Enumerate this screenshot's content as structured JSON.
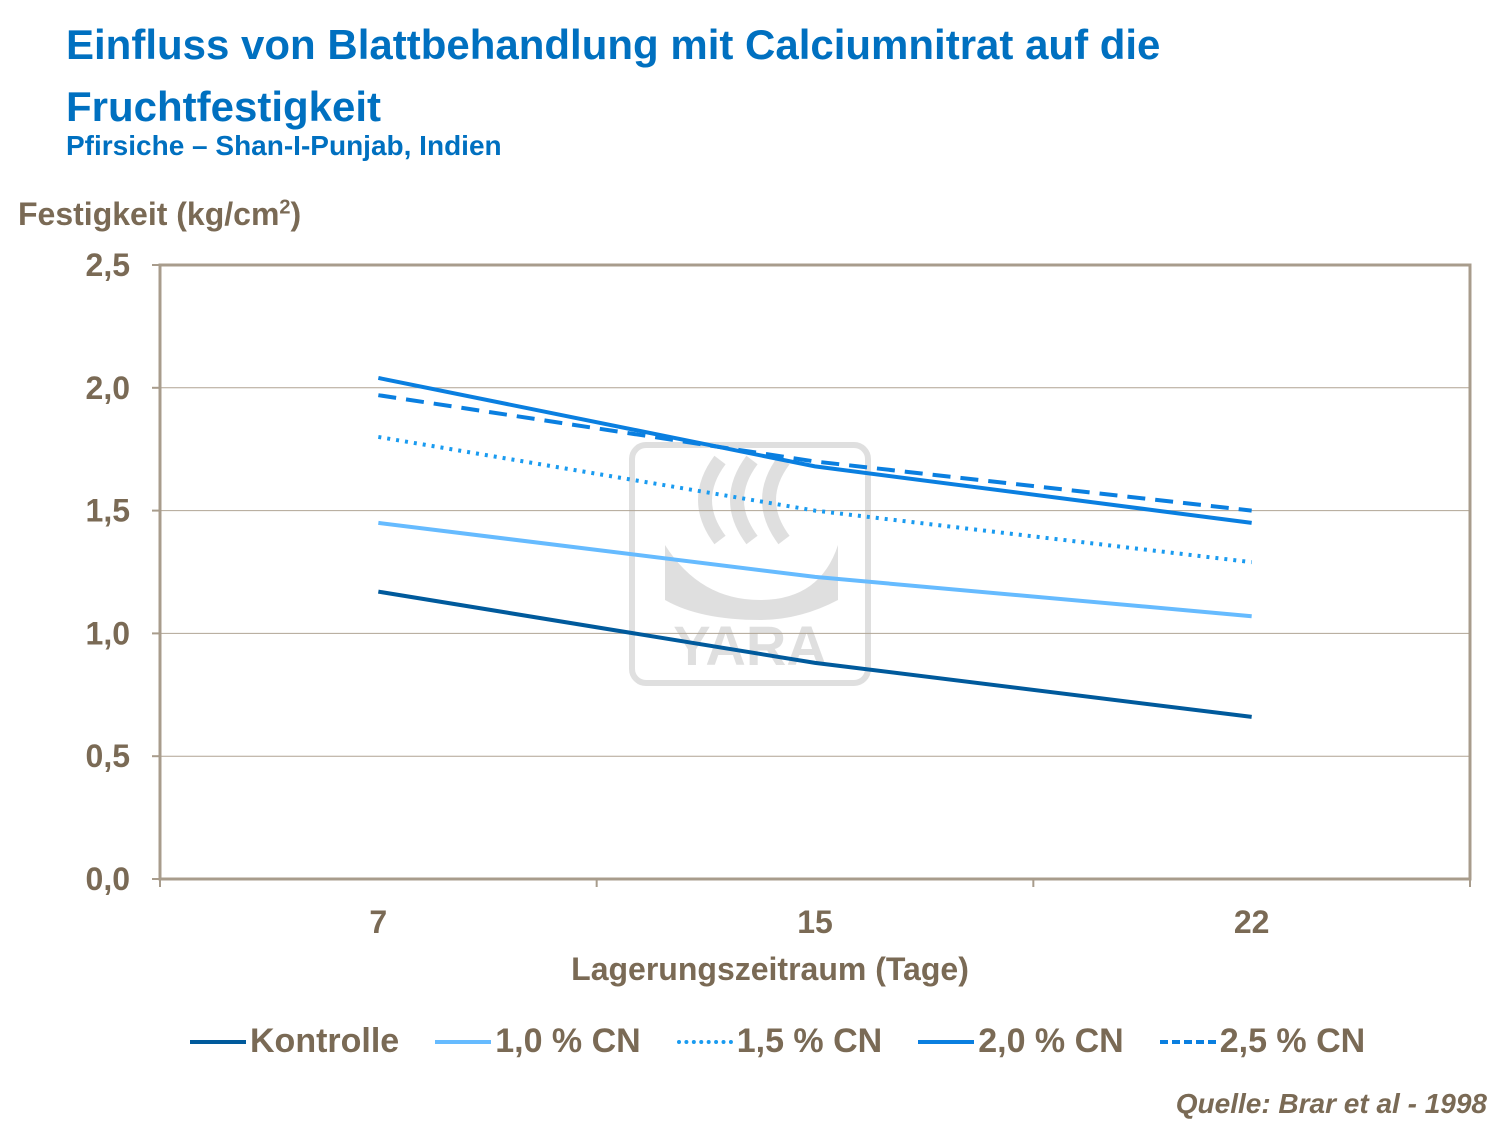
{
  "chart_data": {
    "type": "line",
    "title": "Einfluss von Blattbehandlung mit Calciumnitrat auf die Fruchtfestigkeit",
    "subtitle": "Pfirsiche – Shan-I-Punjab,  Indien",
    "ylabel": "Festigkeit (kg/cm",
    "ylabel_sup": "2",
    "ylabel_end": ")",
    "xlabel": "Lagerungszeitraum (Tage)",
    "categories": [
      "7",
      "15",
      "22"
    ],
    "ylim": [
      0,
      2.5
    ],
    "yticks": [
      "0,0",
      "0,5",
      "1,0",
      "1,5",
      "2,0",
      "2,5"
    ],
    "grid": true,
    "legend_position": "bottom",
    "series": [
      {
        "name": "Kontrolle",
        "values": [
          1.17,
          0.88,
          0.66
        ],
        "color": "#005a9c",
        "dash": "solid"
      },
      {
        "name": "1,0 % CN",
        "values": [
          1.45,
          1.23,
          1.07
        ],
        "color": "#66bbff",
        "dash": "solid"
      },
      {
        "name": "1,5 % CN",
        "values": [
          1.8,
          1.5,
          1.29
        ],
        "color": "#1a9bf0",
        "dash": "dotted"
      },
      {
        "name": "2,0 % CN",
        "values": [
          2.04,
          1.68,
          1.45
        ],
        "color": "#0a7fe0",
        "dash": "solid"
      },
      {
        "name": "2,5 % CN",
        "values": [
          1.97,
          1.7,
          1.5
        ],
        "color": "#0a7fe0",
        "dash": "dashed"
      }
    ],
    "source": "Quelle:  Brar et al - 1998"
  },
  "watermark": "YARA",
  "colors": {
    "title": "#0070c0",
    "text": "#7a6a55",
    "frame": "#a89c8c"
  }
}
